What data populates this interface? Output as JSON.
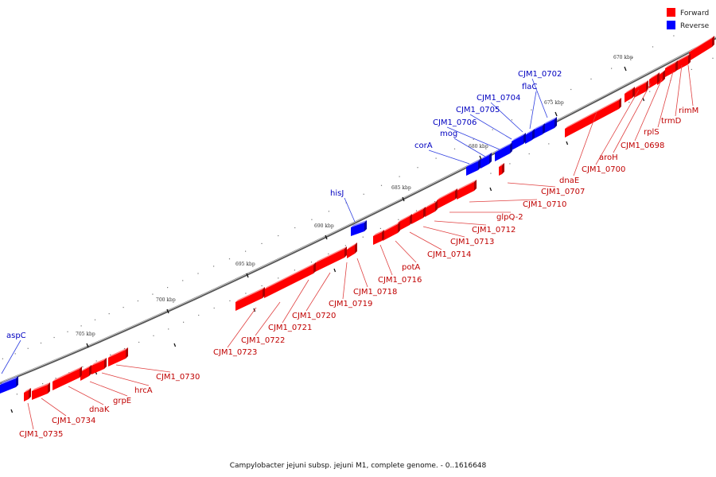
{
  "caption": "Campylobacter jejuni subsp. jejuni M1, complete genome. - 0..1616648",
  "legend": [
    {
      "label": "Forward",
      "color": "#ff0000"
    },
    {
      "label": "Reverse",
      "color": "#0000ff"
    }
  ],
  "colors": {
    "forward": "#ff0000",
    "forward_dark": "#a80000",
    "forward_light": "#ff8a8a",
    "reverse": "#0000ff",
    "reverse_dark": "#0000a0",
    "reverse_light": "#8a8aff",
    "forward_text": "#c00000",
    "reverse_text": "#0000c0",
    "backbone": "#666666"
  },
  "scale_ticks": [
    "670 kbp",
    "675 kbp",
    "680 kbp",
    "685 kbp",
    "690 kbp",
    "695 kbp",
    "700 kbp",
    "705 kbp"
  ],
  "genes": [
    {
      "name": "rimM",
      "strand": "forward"
    },
    {
      "name": "trmD",
      "strand": "forward"
    },
    {
      "name": "rplS",
      "strand": "forward"
    },
    {
      "name": "CJM1_0698",
      "strand": "forward"
    },
    {
      "name": "aroH",
      "strand": "forward"
    },
    {
      "name": "CJM1_0700",
      "strand": "forward"
    },
    {
      "name": "dnaE",
      "strand": "forward"
    },
    {
      "name": "CJM1_0702",
      "strand": "reverse"
    },
    {
      "name": "flaC",
      "strand": "reverse"
    },
    {
      "name": "CJM1_0704",
      "strand": "reverse"
    },
    {
      "name": "CJM1_0705",
      "strand": "reverse"
    },
    {
      "name": "CJM1_0706",
      "strand": "reverse"
    },
    {
      "name": "mog",
      "strand": "reverse"
    },
    {
      "name": "corA",
      "strand": "reverse"
    },
    {
      "name": "CJM1_0707",
      "strand": "forward"
    },
    {
      "name": "CJM1_0710",
      "strand": "forward"
    },
    {
      "name": "glpQ-2",
      "strand": "forward"
    },
    {
      "name": "CJM1_0712",
      "strand": "forward"
    },
    {
      "name": "CJM1_0713",
      "strand": "forward"
    },
    {
      "name": "CJM1_0714",
      "strand": "forward"
    },
    {
      "name": "hisJ",
      "strand": "reverse"
    },
    {
      "name": "potA",
      "strand": "forward"
    },
    {
      "name": "CJM1_0716",
      "strand": "forward"
    },
    {
      "name": "CJM1_0718",
      "strand": "forward"
    },
    {
      "name": "CJM1_0719",
      "strand": "forward"
    },
    {
      "name": "CJM1_0720",
      "strand": "forward"
    },
    {
      "name": "CJM1_0721",
      "strand": "forward"
    },
    {
      "name": "CJM1_0722",
      "strand": "forward"
    },
    {
      "name": "CJM1_0723",
      "strand": "forward"
    },
    {
      "name": "CJM1_0730",
      "strand": "forward"
    },
    {
      "name": "hrcA",
      "strand": "forward"
    },
    {
      "name": "grpE",
      "strand": "forward"
    },
    {
      "name": "dnaK",
      "strand": "forward"
    },
    {
      "name": "CJM1_0734",
      "strand": "forward"
    },
    {
      "name": "CJM1_0735",
      "strand": "forward"
    },
    {
      "name": "aspC",
      "strand": "reverse"
    }
  ]
}
